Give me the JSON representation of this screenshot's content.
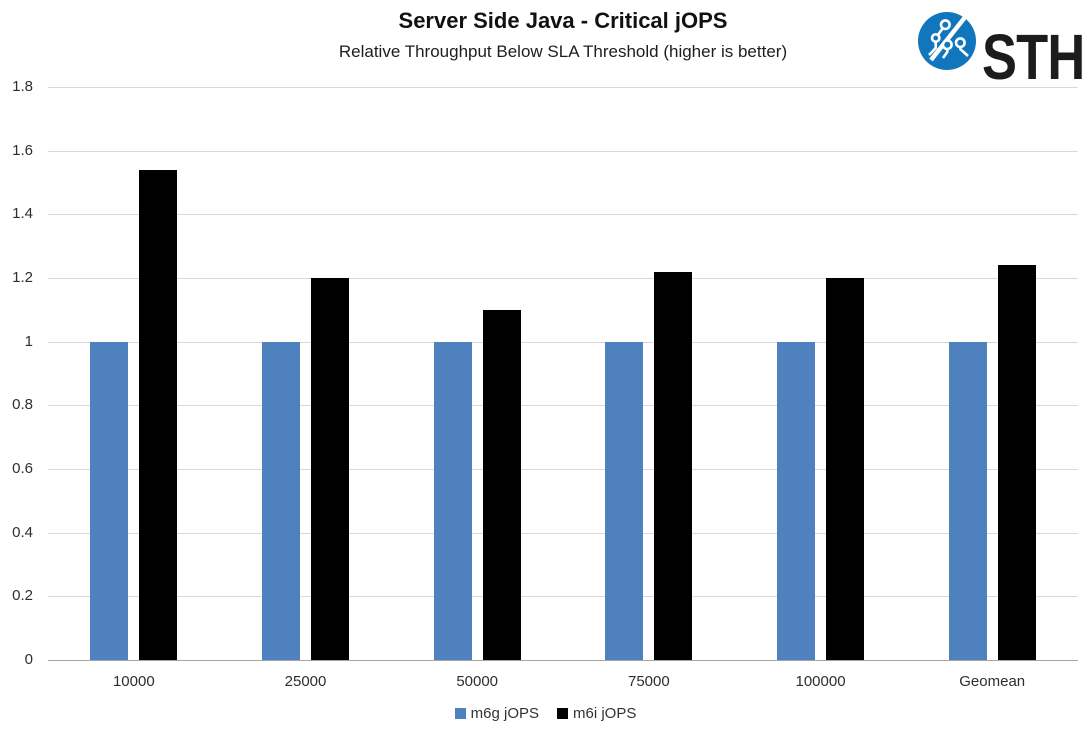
{
  "logo": {
    "text": "STH",
    "circle_color": "#1276bd",
    "text_color": "#1c1c1c"
  },
  "chart_data": {
    "type": "bar",
    "title": "Server Side Java - Critical jOPS",
    "subtitle": "Relative Throughput Below SLA Threshold (higher is better)",
    "categories": [
      "10000",
      "25000",
      "50000",
      "75000",
      "100000",
      "Geomean"
    ],
    "series": [
      {
        "name": "m6g jOPS",
        "color": "#4e81bd",
        "values": [
          1.0,
          1.0,
          1.0,
          1.0,
          1.0,
          1.0
        ]
      },
      {
        "name": "m6i jOPS",
        "color": "#000000",
        "values": [
          1.54,
          1.2,
          1.1,
          1.22,
          1.2,
          1.24
        ]
      }
    ],
    "ylim": [
      0,
      1.8
    ],
    "ytick_step": 0.2,
    "ytick_labels": [
      "0",
      "0.2",
      "0.4",
      "0.6",
      "0.8",
      "1",
      "1.2",
      "1.4",
      "1.6",
      "1.8"
    ],
    "grid": true,
    "grid_color": "#d9d9d9",
    "axis_color": "#a6a6a6",
    "legend_position": "bottom",
    "legend": [
      "m6g jOPS",
      "m6i jOPS"
    ]
  }
}
